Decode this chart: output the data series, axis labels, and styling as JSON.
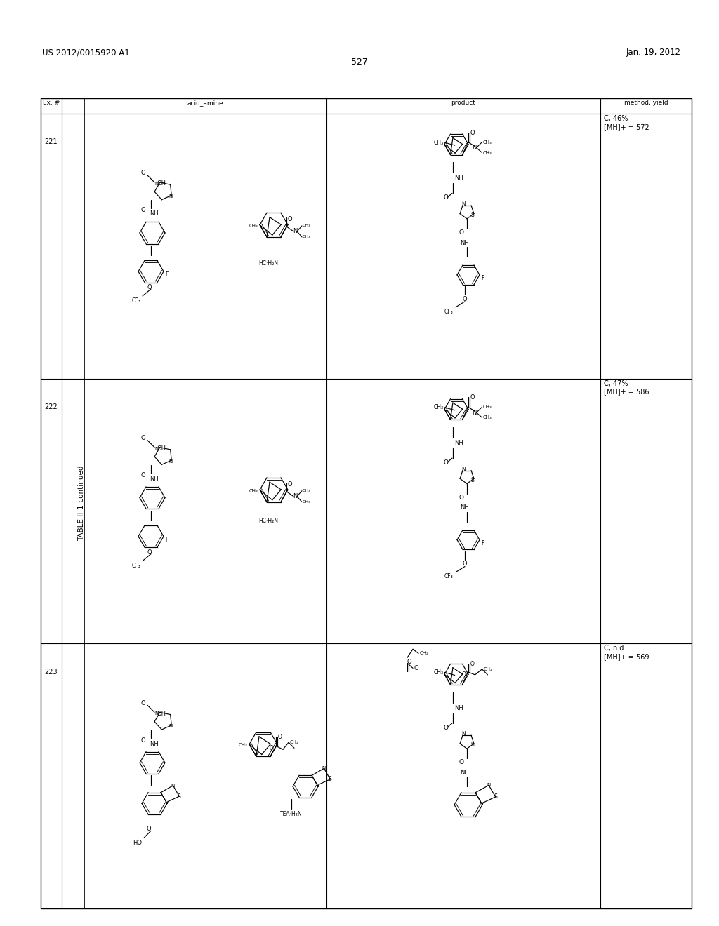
{
  "header_left": "US 2012/0015920 A1",
  "header_right": "Jan. 19, 2012",
  "page_number": "527",
  "table_title": "TABLE II-1-continued",
  "background_color": "#ffffff",
  "text_color": "#000000",
  "col_headers": [
    "Ex. #",
    "acid_amine",
    "product",
    "method, yield"
  ],
  "rows": [
    "221",
    "222",
    "223"
  ],
  "method_yield_221": "C, 46%\n[MH]+ = 572",
  "method_yield_222": "C, 47%\n[MH]+ = 586",
  "method_yield_223": "C, n.d.\n[MH]+ = 569"
}
